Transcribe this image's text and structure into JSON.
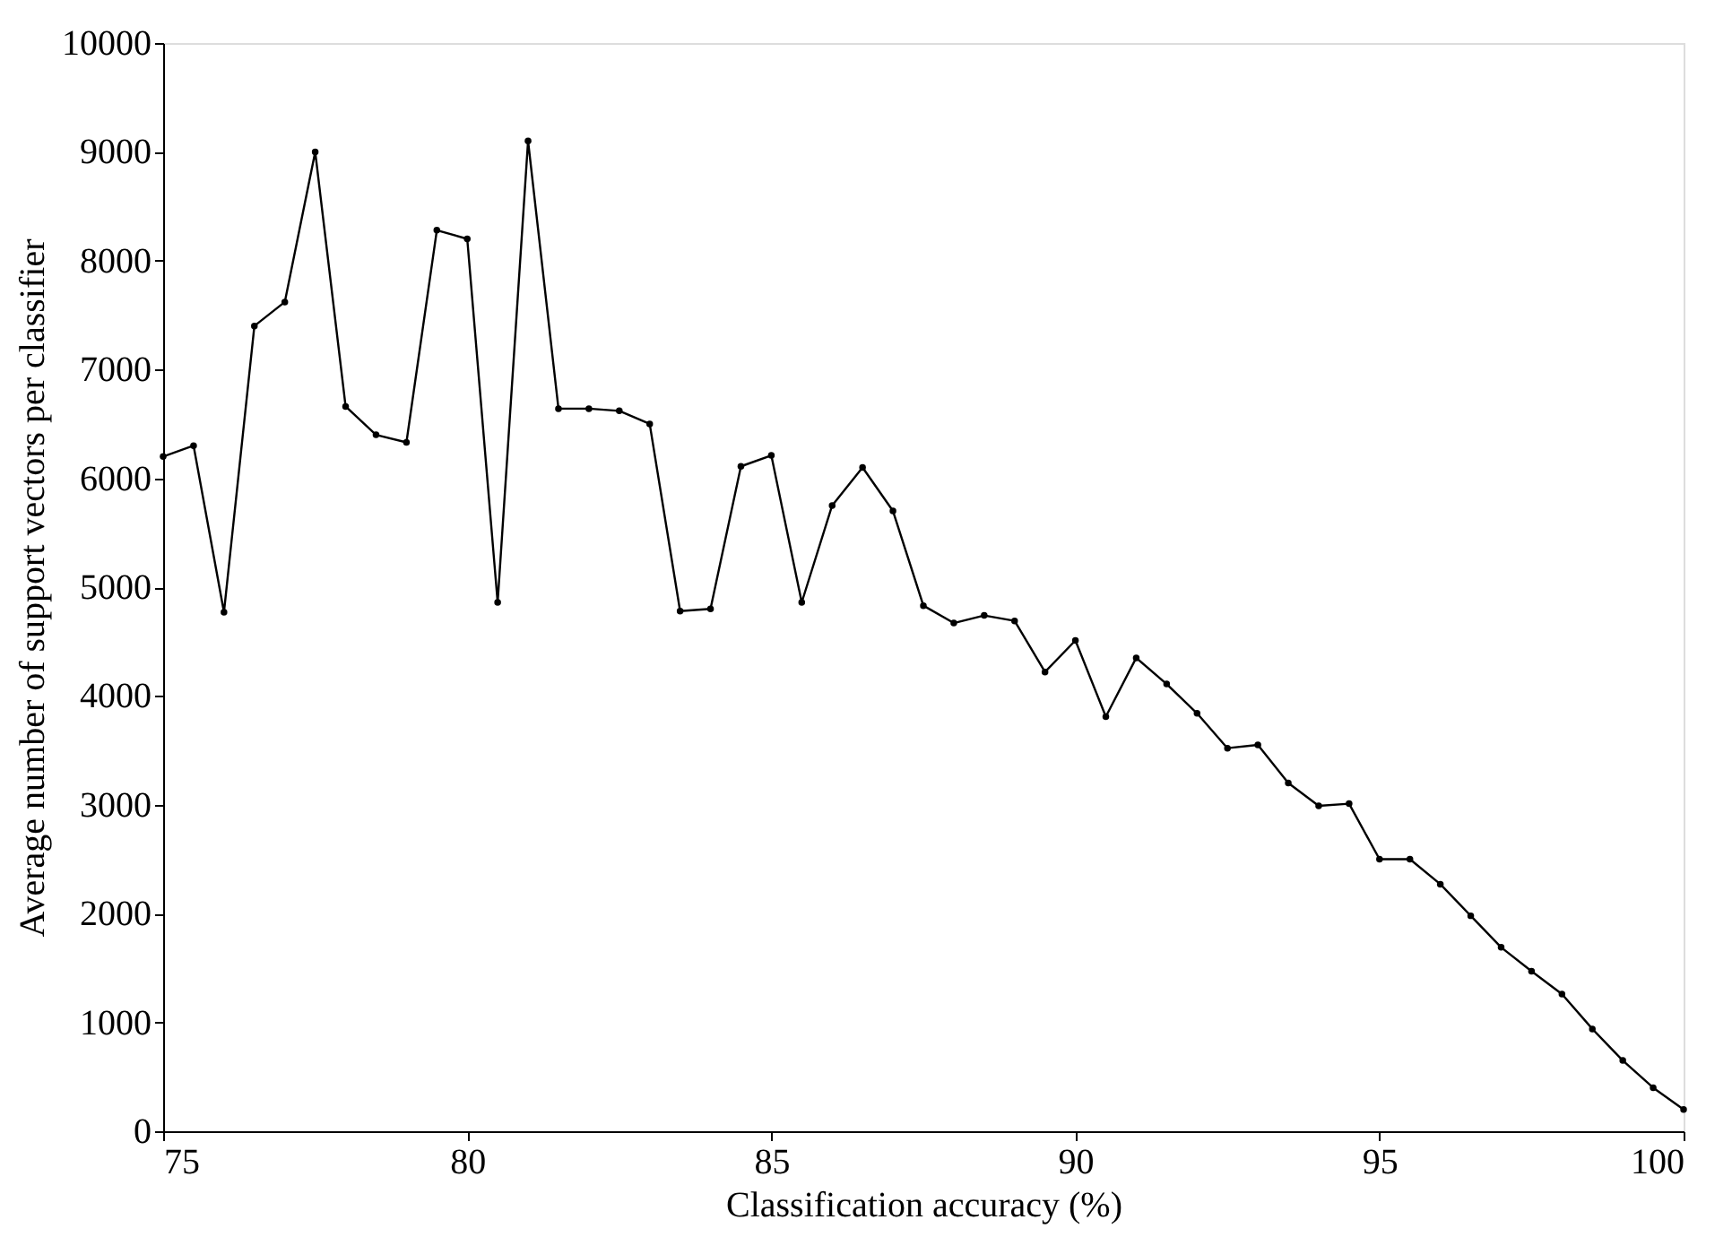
{
  "chart_data": {
    "type": "line",
    "xlabel": "Classification accuracy (%)",
    "ylabel": "Average number of support vectors per classifier",
    "x": [
      75,
      75.5,
      76,
      76.5,
      77,
      77.5,
      78,
      78.5,
      79,
      79.5,
      80,
      80.5,
      81,
      81.5,
      82,
      82.5,
      83,
      83.5,
      84,
      84.5,
      85,
      85.5,
      86,
      86.5,
      87,
      87.5,
      88,
      88.5,
      89,
      89.5,
      90,
      90.5,
      91,
      91.5,
      92,
      92.5,
      93,
      93.5,
      94,
      94.5,
      95,
      95.5,
      96,
      96.5,
      97,
      97.5,
      98,
      98.5,
      99,
      99.5,
      100
    ],
    "series": [
      {
        "color": "#000000",
        "values": [
          6200,
          6300,
          4770,
          7400,
          7620,
          9000,
          6660,
          6400,
          6330,
          8280,
          8200,
          4860,
          9100,
          6640,
          6640,
          6620,
          6500,
          4780,
          4800,
          6110,
          6210,
          4860,
          5750,
          6100,
          5700,
          4830,
          4670,
          4740,
          4690,
          4220,
          4510,
          3810,
          4350,
          4110,
          3840,
          3520,
          3550,
          3200,
          2990,
          3010,
          2500,
          2500,
          2270,
          1980,
          1690,
          1470,
          1260,
          940,
          650,
          400,
          200
        ]
      }
    ],
    "xlim": [
      75,
      100
    ],
    "xticks": [
      75,
      80,
      85,
      90,
      95,
      100
    ],
    "ylim": [
      0,
      10000
    ],
    "yticks": [
      0,
      1000,
      2000,
      3000,
      4000,
      5000,
      6000,
      7000,
      8000,
      9000,
      10000
    ],
    "grid": false,
    "marker": "circle",
    "line_style": "solid"
  }
}
